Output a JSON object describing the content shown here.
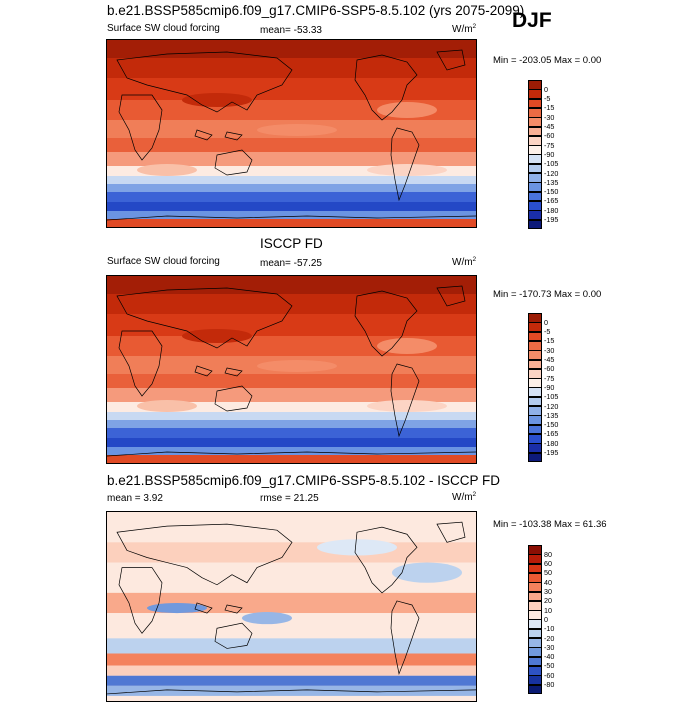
{
  "season": "DJF",
  "panels": [
    {
      "id": "model",
      "title": "b.e21.BSSP585cmip6.f09_g17.CMIP6-SSP5-8.5.102 (yrs 2075-2099)",
      "variable": "Surface SW cloud forcing",
      "stat1": "mean= -53.33",
      "stat2": "",
      "units": "W/m",
      "units_sup": "2",
      "minmax": "Min = -203.05 Max =   0.00",
      "colorbar": {
        "labels": [
          "0",
          "-5",
          "-15",
          "-30",
          "-45",
          "-60",
          "-75",
          "-90",
          "-105",
          "-120",
          "-135",
          "-150",
          "-165",
          "-180",
          "-195"
        ],
        "colors": [
          "#9b1c05",
          "#c32a0a",
          "#e04a25",
          "#ec6b44",
          "#f48c68",
          "#f9b095",
          "#fcd4c4",
          "#fdf0e9",
          "#d5e2f5",
          "#b3cbee",
          "#8fb0e8",
          "#6b94e2",
          "#4a73da",
          "#2a4fcf",
          "#1a2ea8",
          "#0d1a7a"
        ]
      }
    },
    {
      "id": "obs",
      "title": "ISCCP FD",
      "variable": "Surface SW cloud forcing",
      "stat1": "mean= -57.25",
      "stat2": "",
      "units": "W/m",
      "units_sup": "2",
      "minmax": "Min = -170.73 Max =   0.00",
      "colorbar": {
        "labels": [
          "0",
          "-5",
          "-15",
          "-30",
          "-45",
          "-60",
          "-75",
          "-90",
          "-105",
          "-120",
          "-135",
          "-150",
          "-165",
          "-180",
          "-195"
        ],
        "colors": [
          "#9b1c05",
          "#c32a0a",
          "#e04a25",
          "#ec6b44",
          "#f48c68",
          "#f9b095",
          "#fcd4c4",
          "#fdf0e9",
          "#d5e2f5",
          "#b3cbee",
          "#8fb0e8",
          "#6b94e2",
          "#4a73da",
          "#2a4fcf",
          "#1a2ea8",
          "#0d1a7a"
        ]
      }
    },
    {
      "id": "diff",
      "title": "b.e21.BSSP585cmip6.f09_g17.CMIP6-SSP5-8.5.102 - ISCCP FD",
      "variable": "",
      "stat1": "mean =   3.92",
      "stat2": "rmse =  21.25",
      "units": "W/m",
      "units_sup": "2",
      "minmax": "Min = -103.38 Max =  61.36",
      "colorbar": {
        "labels": [
          "80",
          "60",
          "50",
          "40",
          "30",
          "20",
          "10",
          "0",
          "-10",
          "-20",
          "-30",
          "-40",
          "-50",
          "-60",
          "-80"
        ],
        "colors": [
          "#8b0f04",
          "#b81c08",
          "#d93615",
          "#ea5a33",
          "#f4825d",
          "#f9a98b",
          "#fcd0bd",
          "#fde9df",
          "#dde8f6",
          "#bcd2ee",
          "#97b6e6",
          "#7199dd",
          "#4f78d3",
          "#2e52c4",
          "#1732a0",
          "#0a1a72"
        ]
      }
    }
  ]
}
